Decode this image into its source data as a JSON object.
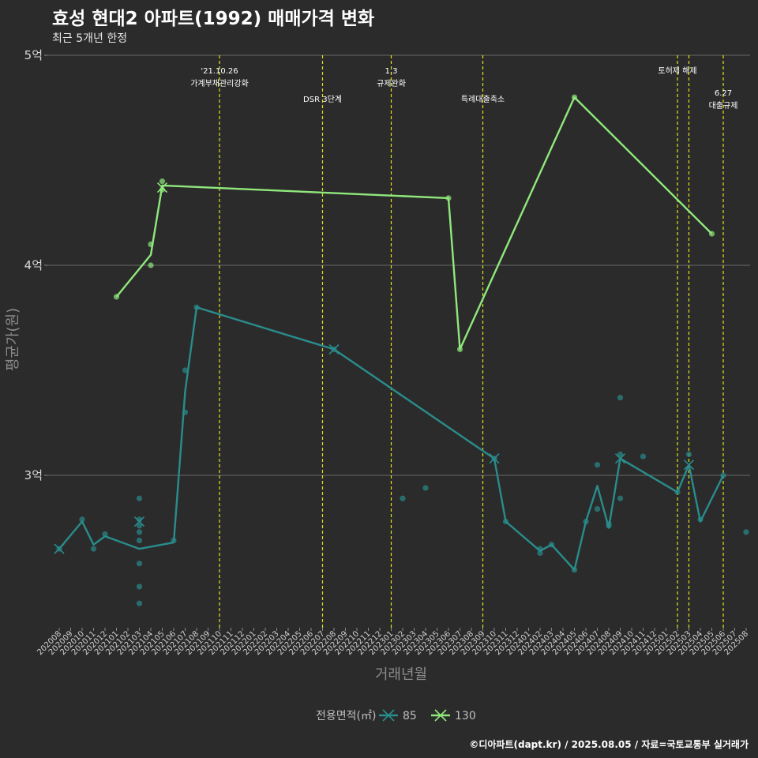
{
  "chart_data": {
    "type": "line",
    "title": "효성 현대2 아파트(1992) 매매가격 변화",
    "subtitle": "최근 5개년 한정",
    "xlabel": "거래년월",
    "ylabel": "평균가(원)",
    "ylim": [
      2.3,
      5.05
    ],
    "y_ticks": [
      {
        "value": 3,
        "label": "3억"
      },
      {
        "value": 4,
        "label": "4억"
      },
      {
        "value": 5,
        "label": "5억"
      }
    ],
    "x_categories": [
      "202008",
      "202009",
      "202010",
      "202011",
      "202012",
      "202101",
      "202102",
      "202103",
      "202104",
      "202105",
      "202106",
      "202107",
      "202108",
      "202109",
      "202110",
      "202111",
      "202112",
      "202201",
      "202202",
      "202203",
      "202204",
      "202205",
      "202206",
      "202207",
      "202208",
      "202209",
      "202210",
      "202211",
      "202212",
      "202301",
      "202302",
      "202303",
      "202304",
      "202305",
      "202306",
      "202307",
      "202308",
      "202309",
      "202310",
      "202311",
      "202312",
      "202401",
      "202402",
      "202403",
      "202404",
      "202405",
      "202406",
      "202407",
      "202408",
      "202409",
      "202410",
      "202411",
      "202412",
      "202501",
      "202502",
      "202503",
      "202504",
      "202505",
      "202506",
      "202507",
      "202508"
    ],
    "events": [
      {
        "x": 14,
        "label": "'21.10.26\n가계부채관리강화",
        "level": 0
      },
      {
        "x": 23,
        "label": "DSR 3단계",
        "level": 1
      },
      {
        "x": 29,
        "label": "1.3\n규제완화",
        "level": 0
      },
      {
        "x": 37,
        "label": "특례대출축소",
        "level": 1
      },
      {
        "x": 54,
        "label": "토허제 해제",
        "level": 0
      },
      {
        "x": 55,
        "label": "",
        "level": 0
      },
      {
        "x": 58,
        "label": "6.27\n대출규제",
        "level": 2
      }
    ],
    "legend_title": "전용면적(㎡)",
    "series": [
      {
        "name": "85",
        "color": "#2a8c8c",
        "line": [
          [
            0,
            2.65
          ],
          [
            2,
            2.78
          ],
          [
            3,
            2.67
          ],
          [
            4,
            2.71
          ],
          [
            7,
            2.65
          ],
          [
            10,
            2.68
          ],
          [
            11,
            3.4
          ],
          [
            12,
            3.8
          ],
          [
            24,
            3.6
          ],
          [
            38,
            3.08
          ],
          [
            39,
            2.78
          ],
          [
            42,
            2.64
          ],
          [
            43,
            2.67
          ],
          [
            45,
            2.55
          ],
          [
            46,
            2.78
          ],
          [
            47,
            2.95
          ],
          [
            48,
            2.75
          ],
          [
            49,
            3.08
          ],
          [
            54,
            2.92
          ],
          [
            55,
            3.05
          ],
          [
            56,
            2.78
          ],
          [
            58,
            3.0
          ]
        ],
        "points": [
          [
            0,
            2.65
          ],
          [
            2,
            2.79
          ],
          [
            3,
            2.65
          ],
          [
            4,
            2.72
          ],
          [
            7,
            2.89
          ],
          [
            7,
            2.79
          ],
          [
            7,
            2.76
          ],
          [
            7,
            2.73
          ],
          [
            7,
            2.69
          ],
          [
            7,
            2.58
          ],
          [
            7,
            2.47
          ],
          [
            7,
            2.39
          ],
          [
            10,
            2.69
          ],
          [
            11,
            3.3
          ],
          [
            11,
            3.5
          ],
          [
            12,
            3.8
          ],
          [
            24,
            3.6
          ],
          [
            30,
            2.89
          ],
          [
            32,
            2.94
          ],
          [
            38,
            3.08
          ],
          [
            39,
            2.78
          ],
          [
            42,
            2.65
          ],
          [
            42,
            2.63
          ],
          [
            43,
            2.67
          ],
          [
            45,
            2.55
          ],
          [
            46,
            2.78
          ],
          [
            47,
            2.84
          ],
          [
            47,
            3.05
          ],
          [
            48,
            2.77
          ],
          [
            48,
            2.76
          ],
          [
            49,
            2.89
          ],
          [
            49,
            3.37
          ],
          [
            49,
            3.1
          ],
          [
            51,
            3.09
          ],
          [
            54,
            2.92
          ],
          [
            55,
            3.1
          ],
          [
            56,
            2.79
          ],
          [
            58,
            3.0
          ],
          [
            60,
            2.73
          ]
        ],
        "crosses": [
          [
            0,
            2.65
          ],
          [
            7,
            2.78
          ],
          [
            24,
            3.6
          ],
          [
            38,
            3.08
          ],
          [
            49,
            3.08
          ],
          [
            55,
            3.05
          ]
        ]
      },
      {
        "name": "130",
        "color": "#90e87c",
        "line": [
          [
            5,
            3.85
          ],
          [
            8,
            4.05
          ],
          [
            9,
            4.38
          ],
          [
            34,
            4.32
          ],
          [
            35,
            3.6
          ],
          [
            45,
            4.8
          ],
          [
            57,
            4.15
          ]
        ],
        "points": [
          [
            5,
            3.85
          ],
          [
            8,
            4.1
          ],
          [
            8,
            4.0
          ],
          [
            9,
            4.4
          ],
          [
            9,
            4.36
          ],
          [
            34,
            4.32
          ],
          [
            35,
            3.6
          ],
          [
            45,
            4.8
          ],
          [
            57,
            4.15
          ]
        ],
        "crosses": [
          [
            9,
            4.37
          ]
        ]
      }
    ],
    "legend_position": "bottom"
  },
  "caption": "©디아파트(dapt.kr) / 2025.08.05 / 자료=국토교통부 실거래가"
}
